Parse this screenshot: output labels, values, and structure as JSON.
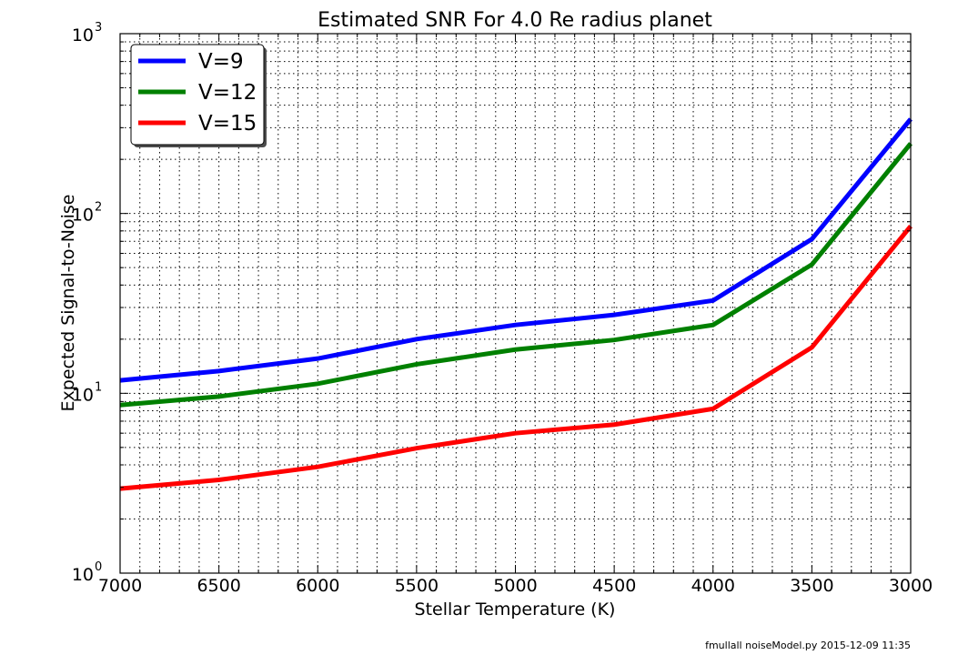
{
  "chart_data": {
    "type": "line",
    "title": "Estimated SNR For 4.0 Re radius planet",
    "xlabel": "Stellar Temperature (K)",
    "ylabel": "Expected Signal-to-Noise",
    "xlim": [
      7000,
      3000
    ],
    "ylim": [
      1,
      1000
    ],
    "yscale": "log",
    "x_inverted": true,
    "grid": true,
    "legend_position": "top-left",
    "x": [
      7000,
      6500,
      6000,
      5500,
      5000,
      4500,
      4000,
      3500,
      3000
    ],
    "xticks": [
      "7000",
      "6500",
      "6000",
      "5500",
      "5000",
      "4500",
      "4000",
      "3500",
      "3000"
    ],
    "yticks": [
      {
        "value": 1,
        "base": "10",
        "exp": "0"
      },
      {
        "value": 10,
        "base": "10",
        "exp": "1"
      },
      {
        "value": 100,
        "base": "10",
        "exp": "2"
      },
      {
        "value": 1000,
        "base": "10",
        "exp": "3"
      }
    ],
    "series": [
      {
        "name": "V=9",
        "color": "#0000ff",
        "values": [
          11.8,
          13.3,
          15.6,
          20.0,
          24.0,
          27.3,
          32.8,
          72.0,
          335
        ]
      },
      {
        "name": "V=12",
        "color": "#008000",
        "values": [
          8.6,
          9.6,
          11.3,
          14.5,
          17.5,
          19.8,
          24.0,
          52.0,
          245
        ]
      },
      {
        "name": "V=15",
        "color": "#ff0000",
        "values": [
          2.95,
          3.3,
          3.9,
          4.95,
          6.0,
          6.7,
          8.2,
          18.0,
          85
        ]
      }
    ]
  },
  "footer": "fmullall noiseModel.py 2015-12-09 11:35"
}
